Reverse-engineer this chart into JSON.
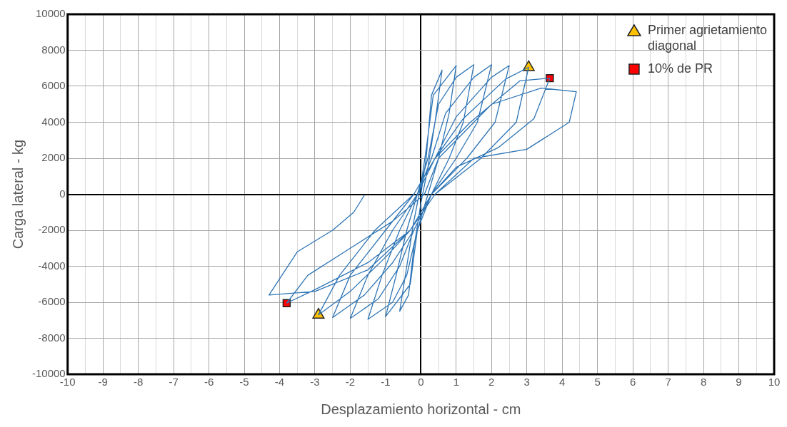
{
  "chart_data": {
    "type": "line",
    "xlabel": "Desplazamiento horizontal - cm",
    "ylabel": "Carga lateral - kg",
    "xlim": [
      -10,
      10
    ],
    "xticks": [
      -10,
      {
        "value": -9.5,
        "label": null
      },
      -9,
      {
        "value": -8.5,
        "label": null
      },
      -8,
      {
        "value": -7.5,
        "label": null
      },
      -7,
      {
        "value": -6.5,
        "label": null
      },
      -6,
      {
        "value": -5.5,
        "label": null
      },
      -5,
      {
        "value": -4.5,
        "label": null
      },
      -4,
      {
        "value": -3.5,
        "label": null
      },
      -3,
      {
        "value": -2.5,
        "label": null
      },
      -2,
      {
        "value": -1.5,
        "label": null
      },
      -1,
      {
        "value": -0.5,
        "label": null
      },
      0,
      {
        "value": 0.5,
        "label": null
      },
      1,
      {
        "value": 1.5,
        "label": null
      },
      2,
      {
        "value": 2.5,
        "label": null
      },
      3,
      {
        "value": 3.5,
        "label": null
      },
      4,
      {
        "value": 4.5,
        "label": null
      },
      5,
      {
        "value": 5.5,
        "label": null
      },
      6,
      {
        "value": 6.5,
        "label": null
      },
      7,
      {
        "value": 7.5,
        "label": null
      },
      8,
      {
        "value": 8.5,
        "label": null
      },
      9,
      {
        "value": 9.5,
        "label": null
      },
      10
    ],
    "ylim": [
      -10000,
      10000
    ],
    "yticks": [
      -10000,
      -8000,
      -6000,
      -4000,
      -2000,
      0,
      2000,
      4000,
      6000,
      8000,
      10000
    ],
    "grid": true,
    "legend": "top right",
    "series": [
      {
        "color": "#2e75b6",
        "marker": "none",
        "x": [
          0,
          0.15,
          0.3,
          0.6,
          0.4,
          0.2,
          0,
          -0.2,
          -0.35,
          -0.6,
          -0.4,
          -0.2,
          0,
          0.15,
          0.35,
          1.0,
          0.8,
          0.5,
          0.2,
          -0.1,
          -0.3,
          -1.0,
          -0.7,
          -0.4,
          -0.1,
          0.2,
          0.5,
          1.0,
          1.5,
          1.2,
          0.8,
          0.3,
          -0.1,
          -0.4,
          -0.8,
          -1.5,
          -1.1,
          -0.6,
          -0.1,
          0.3,
          0.7,
          1.5,
          2.0,
          1.6,
          1.0,
          0.3,
          -0.2,
          -0.6,
          -1.2,
          -2.0,
          -1.5,
          -0.8,
          -0.1,
          0.4,
          1.0,
          2.0,
          2.5,
          2.1,
          1.3,
          0.3,
          -0.2,
          -0.8,
          -1.6,
          -2.5,
          -2.0,
          -1.0,
          -0.2,
          0.4,
          1.2,
          2.4,
          3.05,
          2.7,
          1.7,
          0.4,
          -0.3,
          -1.0,
          -2.0,
          -2.9,
          -2.3,
          -1.3,
          -0.2,
          0.4,
          1.4,
          2.8,
          3.65,
          3.2,
          2.2,
          1.0,
          0.3,
          -0.3,
          -1.5,
          -3.0,
          -3.8,
          -3.2,
          -2.0,
          -0.8,
          0.1,
          0.5,
          2.0,
          3.4,
          4.4,
          4.2,
          3.0,
          1.5,
          0.4,
          -0.3,
          -1.5,
          -3.0,
          -4.3,
          -3.5,
          -2.5,
          -1.9,
          -1.6
        ],
        "values": [
          0,
          2000,
          5500,
          6900,
          4000,
          1500,
          -500,
          -3000,
          -5600,
          -6500,
          -4000,
          -1500,
          500,
          2500,
          5500,
          7150,
          4500,
          2000,
          0,
          -2000,
          -5000,
          -6800,
          -4500,
          -2000,
          0,
          2000,
          5000,
          6500,
          7200,
          4000,
          2000,
          0,
          -2000,
          -4500,
          -6000,
          -6950,
          -4500,
          -2000,
          0,
          2000,
          4500,
          6500,
          7200,
          4000,
          2000,
          0,
          -2000,
          -4000,
          -5800,
          -6900,
          -4500,
          -2000,
          0,
          2000,
          4300,
          6500,
          7150,
          4000,
          2000,
          0,
          -2000,
          -3800,
          -5600,
          -6850,
          -4500,
          -2000,
          0,
          2000,
          4200,
          6400,
          7050,
          4000,
          2000,
          0,
          -2000,
          -3500,
          -5400,
          -6700,
          -4500,
          -2000,
          0,
          2000,
          4000,
          6300,
          6450,
          4200,
          2600,
          1500,
          0,
          -2000,
          -3800,
          -5300,
          -6050,
          -4500,
          -3000,
          -1500,
          0,
          2000,
          5000,
          5900,
          5700,
          4000,
          2500,
          2000,
          0,
          -2000,
          -4200,
          -5400,
          -5600,
          -3200,
          -2000,
          -1000,
          -50
        ]
      },
      {
        "type": "scatter",
        "name": "Primer agrietamiento diagonal",
        "color": "#ffc000",
        "marker": "triangle",
        "x": [
          3.05,
          -2.9
        ],
        "values": [
          7050,
          -6700
        ]
      },
      {
        "type": "scatter",
        "name": "10% de PR",
        "color": "#ff0000",
        "marker": "square",
        "x": [
          3.65,
          -3.8
        ],
        "values": [
          6450,
          -6050
        ]
      }
    ]
  }
}
